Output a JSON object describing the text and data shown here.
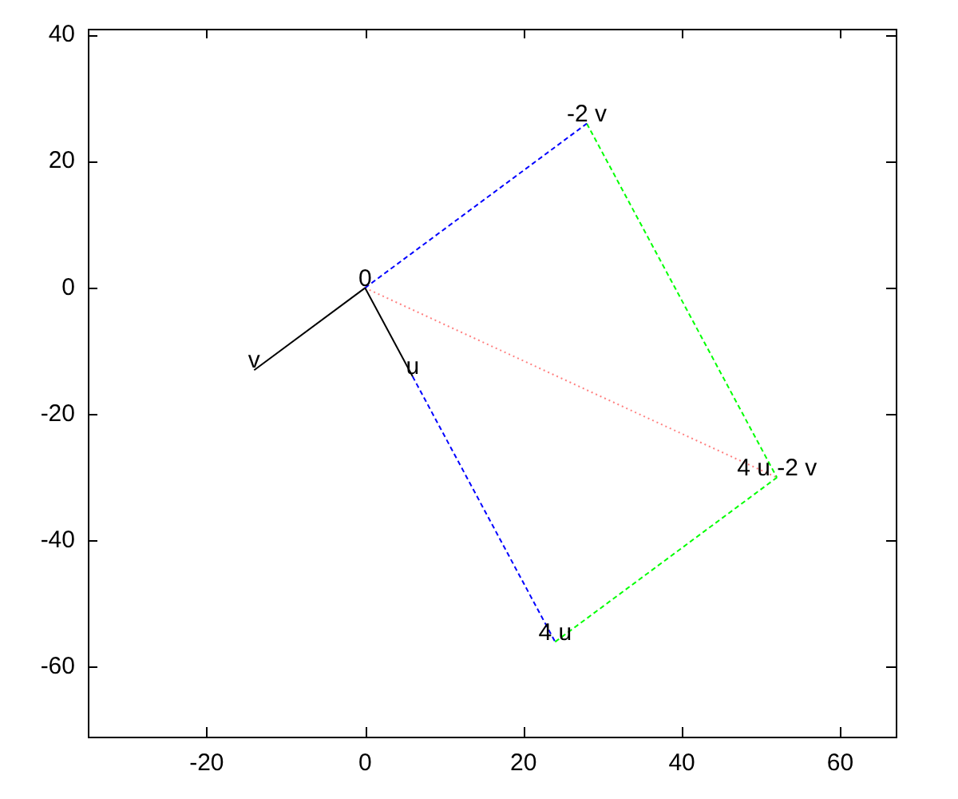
{
  "chart_data": {
    "type": "line",
    "xlim": [
      -35,
      67
    ],
    "ylim": [
      -71,
      41
    ],
    "xticks": [
      -20,
      0,
      20,
      40,
      60
    ],
    "yticks": [
      -60,
      -40,
      -20,
      0,
      20,
      40
    ],
    "grid": false,
    "legend": false,
    "marker": "none",
    "series": [
      {
        "color": "#000000",
        "x": [
          0,
          6
        ],
        "values": [
          0,
          -14
        ],
        "line_style": "solid"
      },
      {
        "color": "#000000",
        "x": [
          0,
          -14
        ],
        "values": [
          0,
          -13
        ],
        "line_style": "solid"
      },
      {
        "color": "#0000ff",
        "x": [
          0,
          28
        ],
        "values": [
          0,
          26
        ],
        "line_style": "dashed"
      },
      {
        "color": "#0000ff",
        "x": [
          6,
          24
        ],
        "values": [
          -14,
          -56
        ],
        "line_style": "dashed"
      },
      {
        "color": "#00ff00",
        "x": [
          28,
          52
        ],
        "values": [
          26,
          -30
        ],
        "line_style": "dashed"
      },
      {
        "color": "#00ff00",
        "x": [
          24,
          52
        ],
        "values": [
          -56,
          -30
        ],
        "line_style": "dashed"
      },
      {
        "color": "#ff8080",
        "x": [
          0,
          52
        ],
        "values": [
          0,
          -30
        ],
        "line_style": "dotted"
      }
    ],
    "annotations": [
      {
        "text": "0",
        "x": 0,
        "y": 0
      },
      {
        "text": "u",
        "x": 6,
        "y": -14
      },
      {
        "text": "v",
        "x": -14,
        "y": -13
      },
      {
        "text": "-2 v",
        "x": 28,
        "y": 26
      },
      {
        "text": "4 u",
        "x": 24,
        "y": -56
      },
      {
        "text": "4 u -2 v",
        "x": 52,
        "y": -30
      }
    ]
  }
}
